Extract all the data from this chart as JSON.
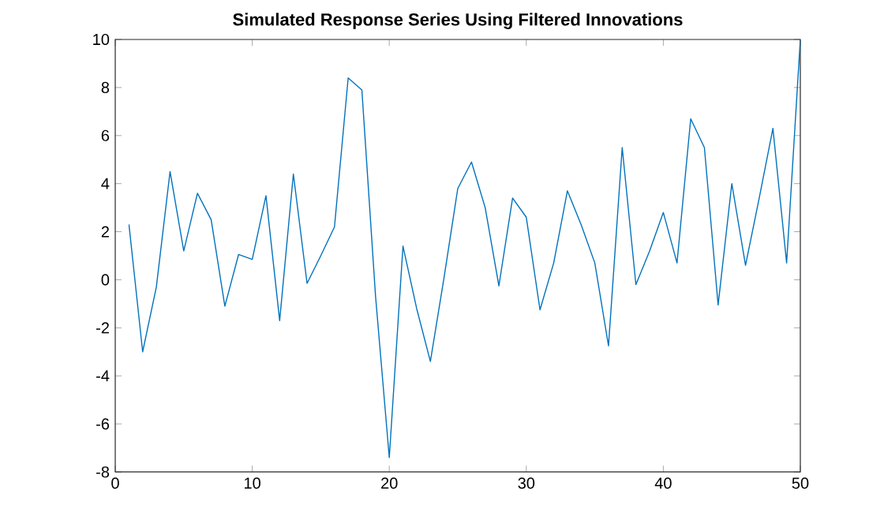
{
  "chart_data": {
    "type": "line",
    "title": "**Simulated Response Series Using Filtered Innovations**",
    "x": [
      1,
      2,
      3,
      4,
      5,
      6,
      7,
      8,
      9,
      10,
      11,
      12,
      13,
      14,
      15,
      16,
      17,
      18,
      19,
      20,
      21,
      22,
      23,
      24,
      25,
      26,
      27,
      28,
      29,
      30,
      31,
      32,
      33,
      34,
      35,
      36,
      37,
      38,
      39,
      40,
      41,
      42,
      43,
      44,
      45,
      46,
      47,
      48,
      49,
      50
    ],
    "series": [
      {
        "color": "#0072bd",
        "values": [
          2.3,
          -3.0,
          -0.3,
          4.5,
          1.2,
          3.6,
          2.5,
          -1.1,
          1.05,
          0.85,
          3.5,
          -1.7,
          4.4,
          -0.15,
          1.0,
          2.2,
          8.4,
          7.9,
          -0.7,
          -7.4,
          1.4,
          -1.2,
          -3.4,
          0.1,
          3.8,
          4.9,
          3.0,
          -0.25,
          3.4,
          2.6,
          -1.25,
          0.7,
          3.7,
          2.3,
          0.7,
          -2.75,
          5.5,
          -0.2,
          1.2,
          2.8,
          0.7,
          6.7,
          5.5,
          -1.05,
          4.0,
          0.6,
          3.4,
          6.3,
          0.7,
          10.0
        ]
      }
    ],
    "xlim": [
      0,
      50
    ],
    "ylim": [
      -8,
      10
    ],
    "xticks": [
      0,
      10,
      20,
      30,
      40,
      50
    ],
    "yticks": [
      -8,
      -6,
      -4,
      -2,
      0,
      2,
      4,
      6,
      8,
      10
    ]
  }
}
